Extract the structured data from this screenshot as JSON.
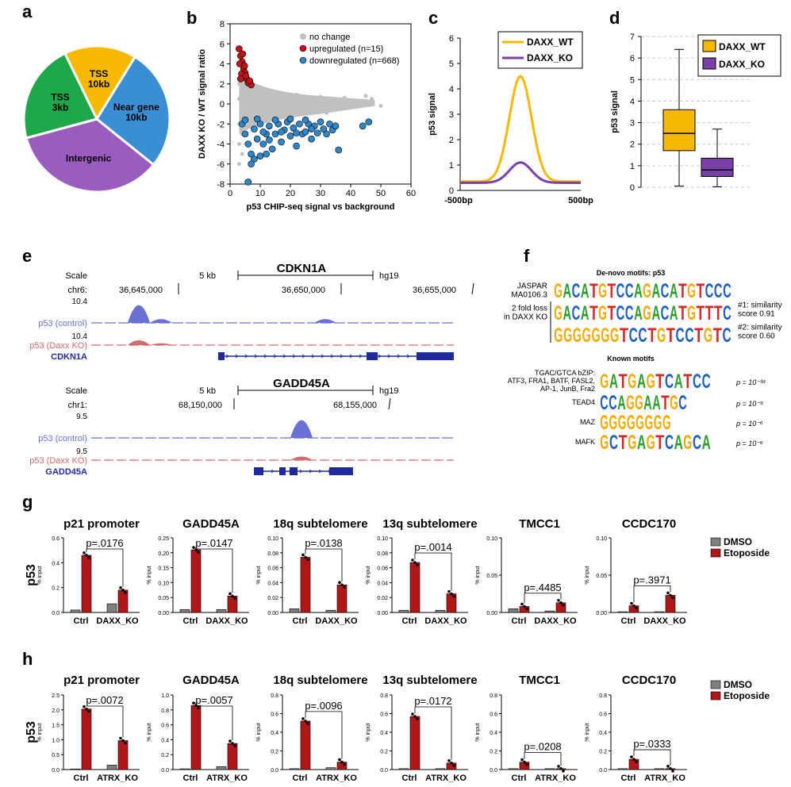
{
  "panel_letters": [
    "a",
    "b",
    "c",
    "d",
    "e",
    "f",
    "g",
    "h"
  ],
  "colors": {
    "dmso": "#808080",
    "etoposide": "#b01818",
    "wt": "#f5b800",
    "ko": "#7b3fa8",
    "pie_tss10": "#f7b800",
    "pie_near": "#3a8fd4",
    "pie_intergenic": "#9b5cc0",
    "pie_tss3": "#1fa84a",
    "scatter_nochange": "#c0c0c0",
    "scatter_up": "#c0141a",
    "scatter_down": "#2f86c8",
    "track_control": "#6b70d6",
    "track_ko": "#d46a6a",
    "gene": "#1f2b9c"
  },
  "chart_data": [
    {
      "panel": "a",
      "type": "pie",
      "labels": [
        "TSS\n10kb",
        "Near gene\n10kb",
        "Intergenic",
        "TSS\n3kb"
      ],
      "values": [
        16,
        27,
        35,
        22
      ]
    },
    {
      "panel": "b",
      "type": "scatter",
      "xlabel": "p53 CHIP-seq signal vs background",
      "ylabel": "DAXX KO / WT signal ratio",
      "xlim": [
        0,
        60
      ],
      "ylim": [
        -8,
        8
      ],
      "xticks": [
        0,
        10,
        20,
        30,
        40,
        50,
        60
      ],
      "yticks": [
        -8,
        -6,
        -4,
        -2,
        0,
        2,
        4,
        6,
        8
      ],
      "legend": [
        "no change",
        "upregulated (n=15)",
        "downregulated (n=668)"
      ],
      "legend_position": "top-right",
      "series": [
        {
          "name": "no change",
          "points": [
            [
              3,
              0.5
            ],
            [
              4,
              1
            ],
            [
              5,
              -0.5
            ],
            [
              6,
              0.8
            ],
            [
              7,
              -1
            ],
            [
              8,
              0.3
            ],
            [
              9,
              1.2
            ],
            [
              10,
              -0.8
            ],
            [
              12,
              0.6
            ],
            [
              14,
              -0.4
            ],
            [
              16,
              1.1
            ],
            [
              18,
              0.2
            ],
            [
              20,
              -0.6
            ],
            [
              22,
              0.9
            ],
            [
              25,
              0.4
            ],
            [
              28,
              -0.3
            ],
            [
              30,
              0.7
            ],
            [
              32,
              -0.9
            ],
            [
              35,
              0.1
            ],
            [
              38,
              0.6
            ],
            [
              42,
              0.3
            ],
            [
              45,
              0.8
            ],
            [
              47,
              0.5
            ],
            [
              50,
              -0.2
            ],
            [
              3,
              2
            ],
            [
              4,
              3
            ],
            [
              5,
              2.5
            ],
            [
              3,
              -2
            ],
            [
              4,
              -3
            ],
            [
              3,
              -4
            ],
            [
              3,
              -6
            ],
            [
              4,
              -5
            ]
          ]
        },
        {
          "name": "upregulated (n=15)",
          "points": [
            [
              3,
              5.5
            ],
            [
              3.5,
              4.8
            ],
            [
              4,
              4.2
            ],
            [
              4.5,
              3.5
            ],
            [
              5,
              3.1
            ],
            [
              5.5,
              2.5
            ],
            [
              6,
              2.1
            ],
            [
              7,
              1.9
            ],
            [
              3.2,
              4
            ],
            [
              4.2,
              5
            ],
            [
              3.8,
              3
            ],
            [
              5.2,
              2.8
            ],
            [
              4.8,
              3.8
            ],
            [
              6.5,
              2.3
            ],
            [
              3.5,
              2.5
            ]
          ]
        },
        {
          "name": "downregulated (n=668)",
          "points": [
            [
              4,
              -2
            ],
            [
              5,
              -3
            ],
            [
              6,
              -4
            ],
            [
              7,
              -5
            ],
            [
              8,
              -2.5
            ],
            [
              9,
              -3.5
            ],
            [
              10,
              -2
            ],
            [
              11,
              -4
            ],
            [
              12,
              -3
            ],
            [
              13,
              -2.2
            ],
            [
              14,
              -4.5
            ],
            [
              15,
              -3
            ],
            [
              16,
              -2
            ],
            [
              17,
              -3.8
            ],
            [
              18,
              -2.6
            ],
            [
              19,
              -1.8
            ],
            [
              20,
              -3.2
            ],
            [
              21,
              -2.4
            ],
            [
              22,
              -4.2
            ],
            [
              23,
              -2
            ],
            [
              24,
              -3
            ],
            [
              25,
              -2.8
            ],
            [
              26,
              -2
            ],
            [
              27,
              -3.5
            ],
            [
              28,
              -2.2
            ],
            [
              29,
              -2.9
            ],
            [
              30,
              -1.8
            ],
            [
              31,
              -2.5
            ],
            [
              32,
              -3
            ],
            [
              33,
              -2
            ],
            [
              34,
              -2.6
            ],
            [
              35,
              -2.2
            ],
            [
              36,
              -4.6
            ],
            [
              44,
              -2.2
            ],
            [
              46,
              -1.8
            ],
            [
              8,
              -5.5
            ],
            [
              6,
              -7.8
            ],
            [
              10,
              -5.2
            ],
            [
              7,
              -6
            ],
            [
              12,
              -5
            ],
            [
              5,
              -1.6
            ],
            [
              9,
              -1.5
            ],
            [
              15,
              -1.6
            ],
            [
              20,
              -1.5
            ],
            [
              25,
              -1.6
            ],
            [
              11,
              -2.8
            ],
            [
              13,
              -3.6
            ],
            [
              17,
              -2.8
            ],
            [
              22,
              -2.9
            ],
            [
              27,
              -2.5
            ]
          ]
        }
      ]
    },
    {
      "panel": "c",
      "type": "line",
      "ylabel": "p53 signal",
      "xtick_labels": [
        "-500bp",
        "500bp"
      ],
      "ylim": [
        0,
        6
      ],
      "yticks": [
        0,
        1,
        2,
        3,
        4,
        5,
        6
      ],
      "legend_position": "top-right",
      "series": [
        {
          "name": "DAXX_WT",
          "peak": 4.5,
          "base": 0.35
        },
        {
          "name": "DAXX_KO",
          "peak": 1.1,
          "base": 0.3
        }
      ]
    },
    {
      "panel": "d",
      "type": "box",
      "ylabel": "p53 signal",
      "ylim": [
        0,
        7
      ],
      "yticks": [
        0,
        1,
        2,
        3,
        4,
        5,
        6,
        7
      ],
      "legend_position": "top-right",
      "series": [
        {
          "name": "DAXX_WT",
          "min": 0.05,
          "q1": 1.7,
          "median": 2.5,
          "q3": 3.6,
          "max": 6.4
        },
        {
          "name": "DAXX_KO",
          "min": 0.02,
          "q1": 0.5,
          "median": 0.8,
          "q3": 1.35,
          "max": 2.7
        }
      ]
    }
  ],
  "panel_e": {
    "tracks": [
      {
        "gene_title": "CDKN1A",
        "scale_label": "Scale",
        "scale_value": "5 kb",
        "assembly": "hg19",
        "chrom_label": "chr6:",
        "coords": [
          "36,645,000",
          "36,650,000",
          "36,655,000"
        ],
        "max_value": "10.4",
        "track1_label": "p53 (control)",
        "track2_label": "p53 (Daxx KO)",
        "gene_label": "CDKN1A",
        "track2_max": "10.4"
      },
      {
        "gene_title": "GADD45A",
        "scale_label": "Scale",
        "scale_value": "5 kb",
        "assembly": "hg19",
        "chrom_label": "chr1:",
        "coords": [
          "68,150,000",
          "68,155,000"
        ],
        "max_value": "9.5",
        "track1_label": "p53 (control)",
        "track2_label": "p53 (Daxx KO)",
        "gene_label": "GADD45A",
        "track2_max": "9.5"
      }
    ]
  },
  "panel_f": {
    "denovo_title": "De-novo motifs: p53",
    "jaspar_label": "JASPAR\nMA0106.3",
    "loss_label": "2 fold loss\nin DAXX KO",
    "denovo_motifs": [
      {
        "seq": "GACATGTCCAGACATGTCCC",
        "score": ""
      },
      {
        "seq": "GACATGTCCAGACATGTTTC",
        "score": "#1: similarity\nscore 0.91"
      },
      {
        "seq": "GGGGGGGTCCTGTCCTGTC",
        "score": "#2: similarity\nscore 0.60"
      }
    ],
    "known_title": "Known motifs",
    "known_motifs": [
      {
        "name": "TGAC/GTCA bZIP:\nATF3, FRA1, BATF, FASL2,\nAP-1, JunB, Fra2",
        "seq": "GATGAGTCATCC",
        "p": "p = 10⁻³⁸"
      },
      {
        "name": "TEAD4",
        "seq": "CCAGGAATGC",
        "p": "p = 10⁻⁹"
      },
      {
        "name": "MAZ",
        "seq": "GGGGGGGG",
        "p": "p = 10⁻⁶"
      },
      {
        "name": "MAFK",
        "seq": "GCTGAGTCAGCA",
        "p": "p = 10⁻⁶"
      }
    ]
  },
  "bar_panels": {
    "legend": [
      "DMSO",
      "Etoposide"
    ],
    "row_ylabel_main": "p53",
    "ylabel_sub": "% input",
    "g": {
      "categories": [
        "Ctrl",
        "DAXX_KO"
      ],
      "charts": [
        {
          "title": "p21 promoter",
          "p": "p=.0176",
          "ylim": [
            0,
            0.6
          ],
          "yticks": [
            "0.0",
            "0.2",
            "0.4",
            "0.6"
          ],
          "dmso": [
            0.02,
            0.07
          ],
          "etoposide": [
            0.46,
            0.18
          ],
          "bracket": [
            "eto0",
            "eto1"
          ]
        },
        {
          "title": "GADD45A",
          "p": "p=.0147",
          "ylim": [
            0,
            0.25
          ],
          "yticks": [
            "0.00",
            "0.05",
            "0.10",
            "0.15",
            "0.20",
            "0.25"
          ],
          "dmso": [
            0.01,
            0.01
          ],
          "etoposide": [
            0.21,
            0.055
          ],
          "bracket": [
            "eto0",
            "eto1"
          ]
        },
        {
          "title": "18q subtelomere",
          "p": "p=.0138",
          "ylim": [
            0,
            0.1
          ],
          "yticks": [
            "0.00",
            "0.02",
            "0.04",
            "0.06",
            "0.08",
            "0.10"
          ],
          "dmso": [
            0.005,
            0.003
          ],
          "etoposide": [
            0.074,
            0.037
          ],
          "bracket": [
            "eto0",
            "eto1"
          ]
        },
        {
          "title": "13q subtelomere",
          "p": "p=.0014",
          "ylim": [
            0,
            0.1
          ],
          "yticks": [
            "0.00",
            "0.02",
            "0.04",
            "0.06",
            "0.08",
            "0.10"
          ],
          "dmso": [
            0.003,
            0.003
          ],
          "etoposide": [
            0.067,
            0.025
          ],
          "bracket": [
            "eto0",
            "eto1"
          ]
        },
        {
          "title": "TMCC1",
          "p": "p=.4485",
          "ylim": [
            0,
            0.1
          ],
          "yticks": [
            "0.00",
            "0.05",
            "0.10"
          ],
          "dmso": [
            0.005,
            0.002
          ],
          "etoposide": [
            0.008,
            0.013
          ],
          "bracket": [
            "eto0",
            "eto1"
          ]
        },
        {
          "title": "CCDC170",
          "p": "p=.3971",
          "ylim": [
            0,
            0.1
          ],
          "yticks": [
            "0.00",
            "0.05",
            "0.10"
          ],
          "dmso": [
            0.001,
            0.001
          ],
          "etoposide": [
            0.009,
            0.023
          ],
          "bracket": [
            "eto0",
            "eto1"
          ]
        }
      ]
    },
    "h": {
      "categories": [
        "Ctrl",
        "ATRX_KO"
      ],
      "charts": [
        {
          "title": "p21 promoter",
          "p": "p=.0072",
          "ylim": [
            0,
            2.5
          ],
          "yticks": [
            "0.0",
            "0.5",
            "1.0",
            "1.5",
            "2.0",
            "2.5"
          ],
          "dmso": [
            0.02,
            0.15
          ],
          "etoposide": [
            2.03,
            0.97
          ],
          "bracket": [
            "eto0",
            "eto1"
          ]
        },
        {
          "title": "GADD45A",
          "p": "p=.0057",
          "ylim": [
            0,
            1.0
          ],
          "yticks": [
            "0.0",
            "0.2",
            "0.4",
            "0.6",
            "0.8",
            "1.0"
          ],
          "dmso": [
            0.01,
            0.04
          ],
          "etoposide": [
            0.86,
            0.35
          ],
          "bracket": [
            "eto0",
            "eto1"
          ]
        },
        {
          "title": "18q subtelomere",
          "p": "p=.0096",
          "ylim": [
            0,
            0.8
          ],
          "yticks": [
            "0.0",
            "0.2",
            "0.4",
            "0.6",
            "0.8"
          ],
          "dmso": [
            0.01,
            0.02
          ],
          "etoposide": [
            0.52,
            0.08
          ],
          "bracket": [
            "eto0",
            "eto1"
          ]
        },
        {
          "title": "13q subtelomere",
          "p": "p=.0172",
          "ylim": [
            0,
            0.8
          ],
          "yticks": [
            "0.0",
            "0.2",
            "0.4",
            "0.6",
            "0.8"
          ],
          "dmso": [
            0.01,
            0.01
          ],
          "etoposide": [
            0.57,
            0.07
          ],
          "bracket": [
            "eto0",
            "eto1"
          ]
        },
        {
          "title": "TMCC1",
          "p": "p=.0208",
          "ylim": [
            0,
            0.8
          ],
          "yticks": [
            "0.0",
            "0.2",
            "0.4",
            "0.6",
            "0.8"
          ],
          "dmso": [
            0.01,
            0.01
          ],
          "etoposide": [
            0.08,
            0.01
          ],
          "bracket": [
            "eto0",
            "eto1"
          ]
        },
        {
          "title": "CCDC170",
          "p": "p=.0333",
          "ylim": [
            0,
            0.8
          ],
          "yticks": [
            "0.0",
            "0.2",
            "0.4",
            "0.6",
            "0.8"
          ],
          "dmso": [
            0.01,
            0.01
          ],
          "etoposide": [
            0.11,
            0.01
          ],
          "bracket": [
            "eto0",
            "eto1"
          ]
        }
      ]
    }
  }
}
